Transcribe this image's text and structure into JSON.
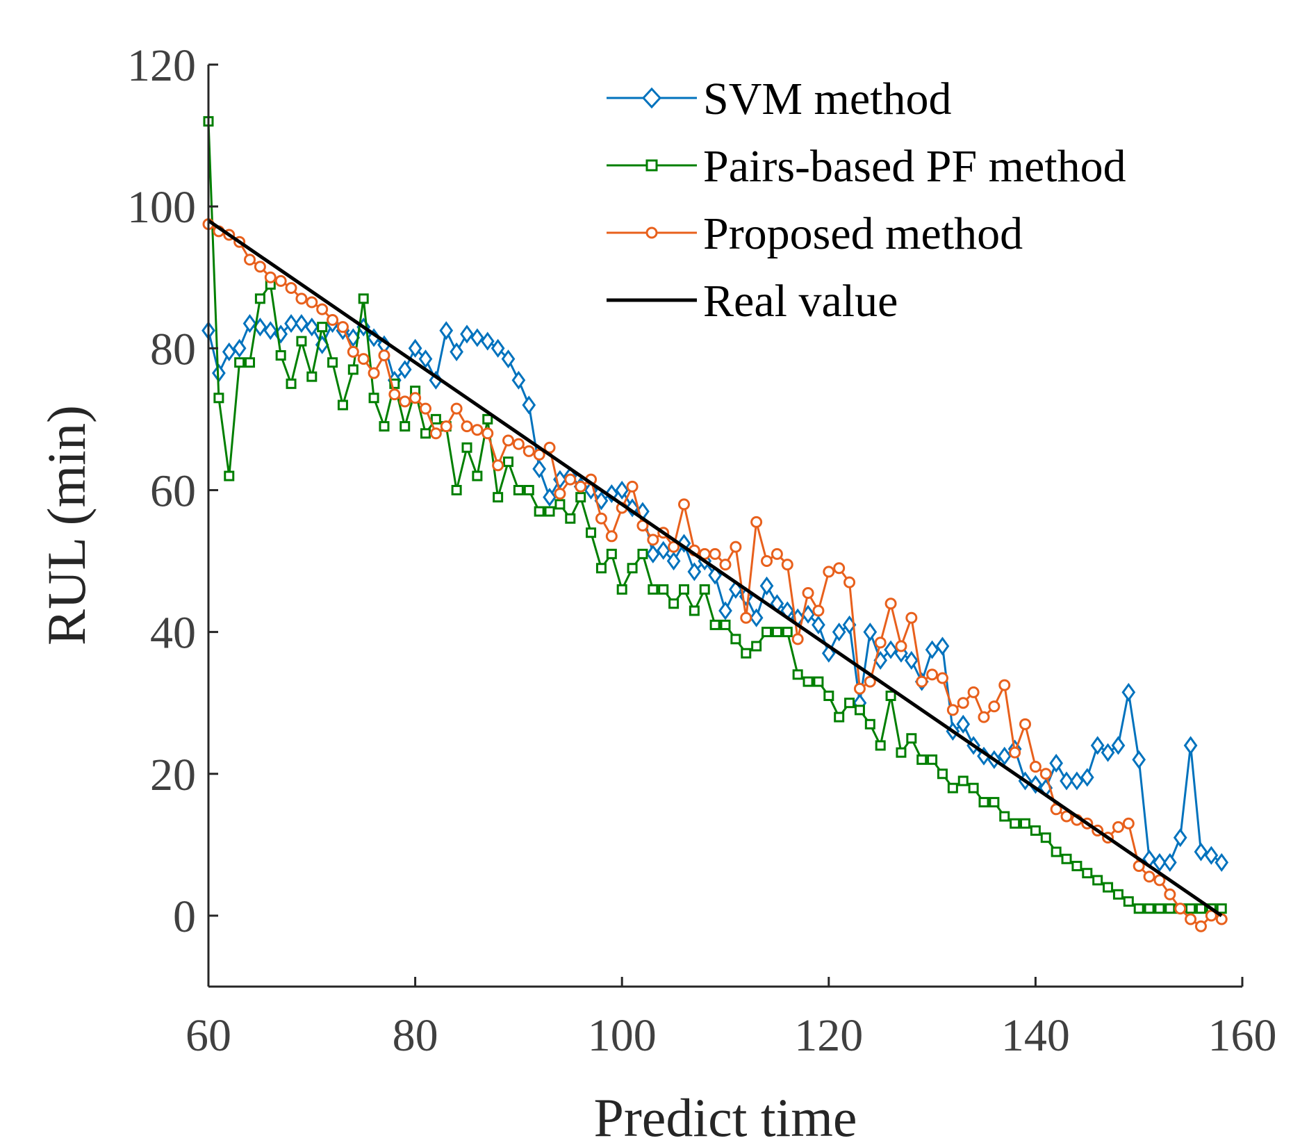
{
  "chart_data": {
    "type": "line",
    "xlabel": "Predict time",
    "ylabel": "RUL (min)",
    "xlim": [
      60,
      160
    ],
    "ylim": [
      -10,
      120
    ],
    "xticks": [
      60,
      80,
      100,
      120,
      140,
      160
    ],
    "yticks": [
      0,
      20,
      40,
      60,
      80,
      100,
      120
    ],
    "grid": false,
    "legend_position": "top-right",
    "series": [
      {
        "name": "SVM method",
        "color": "#0072BD",
        "marker": "diamond",
        "x": [
          60,
          61,
          62,
          63,
          64,
          65,
          66,
          67,
          68,
          69,
          70,
          71,
          72,
          73,
          74,
          75,
          76,
          77,
          78,
          79,
          80,
          81,
          82,
          83,
          84,
          85,
          86,
          87,
          88,
          89,
          90,
          91,
          92,
          93,
          94,
          95,
          96,
          97,
          98,
          99,
          100,
          101,
          102,
          103,
          104,
          105,
          106,
          107,
          108,
          109,
          110,
          111,
          112,
          113,
          114,
          115,
          116,
          117,
          118,
          119,
          120,
          121,
          122,
          123,
          124,
          125,
          126,
          127,
          128,
          129,
          130,
          131,
          132,
          133,
          134,
          135,
          136,
          137,
          138,
          139,
          140,
          141,
          142,
          143,
          144,
          145,
          146,
          147,
          148,
          149,
          150,
          151,
          152,
          153,
          154,
          155,
          156,
          157,
          158
        ],
        "y": [
          82.5,
          76.5,
          79.5,
          80,
          83.5,
          83,
          82.5,
          82,
          83.5,
          83.5,
          83,
          80.5,
          83.5,
          82.5,
          81.5,
          83,
          81.5,
          80.5,
          75.5,
          77,
          80,
          78.5,
          75.5,
          82.5,
          79.5,
          82,
          81.5,
          81,
          80,
          78.5,
          75.5,
          72,
          63,
          59,
          61.5,
          62,
          60.5,
          60,
          58.5,
          59.5,
          60,
          57.5,
          57,
          51,
          51.5,
          50,
          52.5,
          48.5,
          50,
          48,
          43,
          46,
          45,
          42,
          46.5,
          44,
          43,
          42,
          42.5,
          41,
          37,
          40,
          41,
          30,
          40,
          36,
          37.5,
          37,
          36,
          33,
          37.5,
          38,
          26,
          27,
          24,
          22.5,
          22,
          22.5,
          23.5,
          19,
          18.5,
          18,
          21.5,
          19,
          19,
          19.5,
          24,
          23,
          24,
          31.5,
          22,
          8,
          7.5,
          7.5,
          11,
          24,
          9,
          8.5,
          7.5
        ]
      },
      {
        "name": "Pairs-based PF method",
        "color": "#007F00",
        "marker": "square",
        "x": [
          60,
          61,
          62,
          63,
          64,
          65,
          66,
          67,
          68,
          69,
          70,
          71,
          72,
          73,
          74,
          75,
          76,
          77,
          78,
          79,
          80,
          81,
          82,
          83,
          84,
          85,
          86,
          87,
          88,
          89,
          90,
          91,
          92,
          93,
          94,
          95,
          96,
          97,
          98,
          99,
          100,
          101,
          102,
          103,
          104,
          105,
          106,
          107,
          108,
          109,
          110,
          111,
          112,
          113,
          114,
          115,
          116,
          117,
          118,
          119,
          120,
          121,
          122,
          123,
          124,
          125,
          126,
          127,
          128,
          129,
          130,
          131,
          132,
          133,
          134,
          135,
          136,
          137,
          138,
          139,
          140,
          141,
          142,
          143,
          144,
          145,
          146,
          147,
          148,
          149,
          150,
          151,
          152,
          153,
          154,
          155,
          156,
          157,
          158
        ],
        "y": [
          112,
          73,
          62,
          78,
          78,
          87,
          89,
          79,
          75,
          81,
          76,
          83,
          78,
          72,
          77,
          87,
          73,
          69,
          75,
          69,
          74,
          68,
          70,
          69,
          60,
          66,
          62,
          70,
          59,
          64,
          60,
          60,
          57,
          57,
          58,
          56,
          59,
          54,
          49,
          51,
          46,
          49,
          51,
          46,
          46,
          44,
          46,
          43,
          46,
          41,
          41,
          39,
          37,
          38,
          40,
          40,
          40,
          34,
          33,
          33,
          31,
          28,
          30,
          29,
          27,
          24,
          31,
          23,
          25,
          22,
          22,
          20,
          18,
          19,
          18,
          16,
          16,
          14,
          13,
          13,
          12,
          11,
          9,
          8,
          7,
          6,
          5,
          4,
          3,
          2,
          1,
          1,
          1,
          1,
          1,
          1,
          1,
          1,
          1
        ]
      },
      {
        "name": "Proposed method",
        "color": "#E8601C",
        "marker": "circle",
        "x": [
          60,
          61,
          62,
          63,
          64,
          65,
          66,
          67,
          68,
          69,
          70,
          71,
          72,
          73,
          74,
          75,
          76,
          77,
          78,
          79,
          80,
          81,
          82,
          83,
          84,
          85,
          86,
          87,
          88,
          89,
          90,
          91,
          92,
          93,
          94,
          95,
          96,
          97,
          98,
          99,
          100,
          101,
          102,
          103,
          104,
          105,
          106,
          107,
          108,
          109,
          110,
          111,
          112,
          113,
          114,
          115,
          116,
          117,
          118,
          119,
          120,
          121,
          122,
          123,
          124,
          125,
          126,
          127,
          128,
          129,
          130,
          131,
          132,
          133,
          134,
          135,
          136,
          137,
          138,
          139,
          140,
          141,
          142,
          143,
          144,
          145,
          146,
          147,
          148,
          149,
          150,
          151,
          152,
          153,
          154,
          155,
          156,
          157,
          158
        ],
        "y": [
          97.5,
          96.5,
          96,
          95,
          92.5,
          91.5,
          90,
          89.5,
          88.5,
          87,
          86.5,
          85.5,
          84,
          83,
          79.5,
          78.5,
          76.5,
          79,
          73.5,
          72.5,
          73,
          71.5,
          68,
          69,
          71.5,
          69,
          68.5,
          68,
          63.5,
          67,
          66.5,
          65.5,
          65,
          66,
          59.5,
          61.5,
          60.5,
          61.5,
          56,
          53.5,
          57.5,
          60.5,
          55,
          53,
          54,
          52,
          58,
          51.5,
          51,
          51,
          49.5,
          52,
          42,
          55.5,
          50,
          51,
          49.5,
          39,
          45.5,
          43,
          48.5,
          49,
          47,
          32,
          33,
          38.5,
          44,
          38,
          42,
          33,
          34,
          33.5,
          29,
          30,
          31.5,
          28,
          29.5,
          32.5,
          23,
          27,
          21,
          20,
          15,
          14,
          13.5,
          13,
          12,
          11,
          12.5,
          13,
          7,
          5.5,
          5,
          3,
          1,
          -0.5,
          -1.5,
          0,
          -0.5
        ]
      },
      {
        "name": "Real value",
        "color": "#000000",
        "marker": "none",
        "x": [
          60,
          158
        ],
        "y": [
          98,
          0
        ]
      }
    ]
  }
}
